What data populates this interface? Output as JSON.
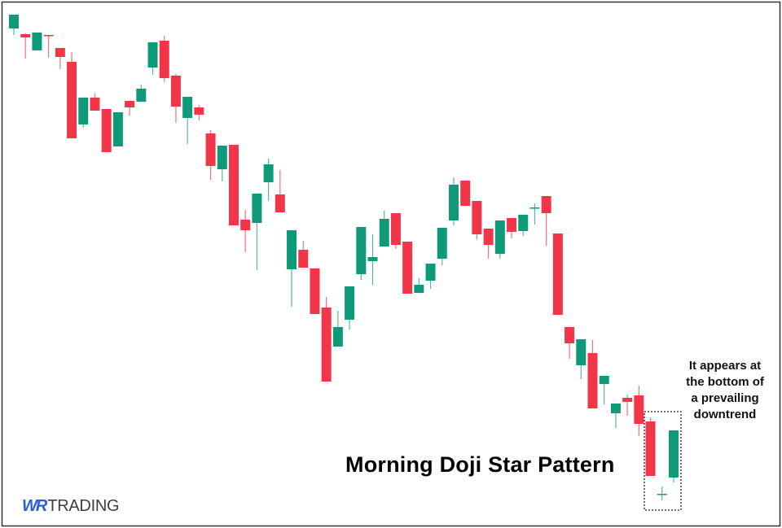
{
  "chart_data": {
    "type": "candlestick",
    "title": "Morning Doji Star Pattern",
    "annotation": [
      "It appears at",
      "the bottom of",
      "a prevailing",
      "downtrend"
    ],
    "xlabel": "",
    "ylabel": "",
    "axes_visible": false,
    "grid": false,
    "highlight": {
      "label": "Morning Doji Star Pattern",
      "candles": [
        56,
        57,
        58
      ],
      "style": "dotted-box"
    },
    "colors": {
      "up": "#0e9a78",
      "down": "#f03648",
      "border": "#333333",
      "highlight_box": "#222222"
    },
    "candles": [
      {
        "o": 615,
        "h": 632,
        "l": 607,
        "c": 632
      },
      {
        "o": 608,
        "h": 609,
        "l": 578,
        "c": 604
      },
      {
        "o": 588,
        "h": 610,
        "l": 588,
        "c": 610
      },
      {
        "o": 607,
        "h": 607,
        "l": 579,
        "c": 606
      },
      {
        "o": 591,
        "h": 591,
        "l": 565,
        "c": 580
      },
      {
        "o": 574,
        "h": 586,
        "l": 480,
        "c": 480
      },
      {
        "o": 497,
        "h": 530,
        "l": 493,
        "c": 530
      },
      {
        "o": 530,
        "h": 535,
        "l": 514,
        "c": 514
      },
      {
        "o": 516,
        "h": 516,
        "l": 463,
        "c": 463
      },
      {
        "o": 470,
        "h": 512,
        "l": 470,
        "c": 512
      },
      {
        "o": 526,
        "h": 526,
        "l": 508,
        "c": 518
      },
      {
        "o": 525,
        "h": 546,
        "l": 525,
        "c": 541
      },
      {
        "o": 567,
        "h": 598,
        "l": 558,
        "c": 598
      },
      {
        "o": 600,
        "h": 606,
        "l": 549,
        "c": 554
      },
      {
        "o": 557,
        "h": 559,
        "l": 499,
        "c": 519
      },
      {
        "o": 505,
        "h": 531,
        "l": 473,
        "c": 531
      },
      {
        "o": 518,
        "h": 521,
        "l": 502,
        "c": 509
      },
      {
        "o": 486,
        "h": 490,
        "l": 429,
        "c": 446
      },
      {
        "o": 442,
        "h": 471,
        "l": 427,
        "c": 471
      },
      {
        "o": 472,
        "h": 472,
        "l": 373,
        "c": 373
      },
      {
        "o": 380,
        "h": 392,
        "l": 340,
        "c": 367
      },
      {
        "o": 376,
        "h": 412,
        "l": 318,
        "c": 412
      },
      {
        "o": 426,
        "h": 455,
        "l": 403,
        "c": 448
      },
      {
        "o": 411,
        "h": 441,
        "l": 389,
        "c": 389
      },
      {
        "o": 319,
        "h": 367,
        "l": 273,
        "c": 367
      },
      {
        "o": 343,
        "h": 354,
        "l": 321,
        "c": 321
      },
      {
        "o": 320,
        "h": 320,
        "l": 264,
        "c": 264
      },
      {
        "o": 272,
        "h": 285,
        "l": 181,
        "c": 181
      },
      {
        "o": 224,
        "h": 268,
        "l": 224,
        "c": 248
      },
      {
        "o": 257,
        "h": 298,
        "l": 245,
        "c": 298
      },
      {
        "o": 313,
        "h": 371,
        "l": 306,
        "c": 371
      },
      {
        "o": 329,
        "h": 362,
        "l": 300,
        "c": 334
      },
      {
        "o": 347,
        "h": 391,
        "l": 347,
        "c": 381
      },
      {
        "o": 388,
        "h": 388,
        "l": 344,
        "c": 349
      },
      {
        "o": 353,
        "h": 353,
        "l": 289,
        "c": 289
      },
      {
        "o": 290,
        "h": 308,
        "l": 290,
        "c": 300
      },
      {
        "o": 305,
        "h": 326,
        "l": 295,
        "c": 326
      },
      {
        "o": 332,
        "h": 370,
        "l": 324,
        "c": 370
      },
      {
        "o": 379,
        "h": 432,
        "l": 373,
        "c": 423
      },
      {
        "o": 428,
        "h": 428,
        "l": 397,
        "c": 397
      },
      {
        "o": 403,
        "h": 403,
        "l": 356,
        "c": 362
      },
      {
        "o": 369,
        "h": 369,
        "l": 332,
        "c": 349
      },
      {
        "o": 338,
        "h": 379,
        "l": 332,
        "c": 379
      },
      {
        "o": 382,
        "h": 382,
        "l": 357,
        "c": 365
      },
      {
        "o": 366,
        "h": 386,
        "l": 360,
        "c": 386
      },
      {
        "o": 395,
        "h": 400,
        "l": 374,
        "c": 395
      },
      {
        "o": 409,
        "h": 409,
        "l": 348,
        "c": 388
      },
      {
        "o": 363,
        "h": 363,
        "l": 263,
        "c": 263
      },
      {
        "o": 248,
        "h": 248,
        "l": 209,
        "c": 228
      },
      {
        "o": 201,
        "h": 233,
        "l": 184,
        "c": 233
      },
      {
        "o": 216,
        "h": 232,
        "l": 148,
        "c": 148
      },
      {
        "o": 178,
        "h": 188,
        "l": 153,
        "c": 188
      },
      {
        "o": 142,
        "h": 154,
        "l": 124,
        "c": 154
      },
      {
        "o": 161,
        "h": 165,
        "l": 139,
        "c": 156
      },
      {
        "o": 164,
        "h": 176,
        "l": 114,
        "c": 129
      },
      {
        "o": 132,
        "h": 137,
        "l": 65,
        "c": 65
      },
      {
        "o": 43,
        "h": 52,
        "l": 35,
        "c": 43
      },
      {
        "o": 63,
        "h": 121,
        "l": 57,
        "c": 121
      }
    ]
  },
  "logo": {
    "text": "WRTRADING",
    "mark": "WR",
    "word": "TRADING"
  }
}
